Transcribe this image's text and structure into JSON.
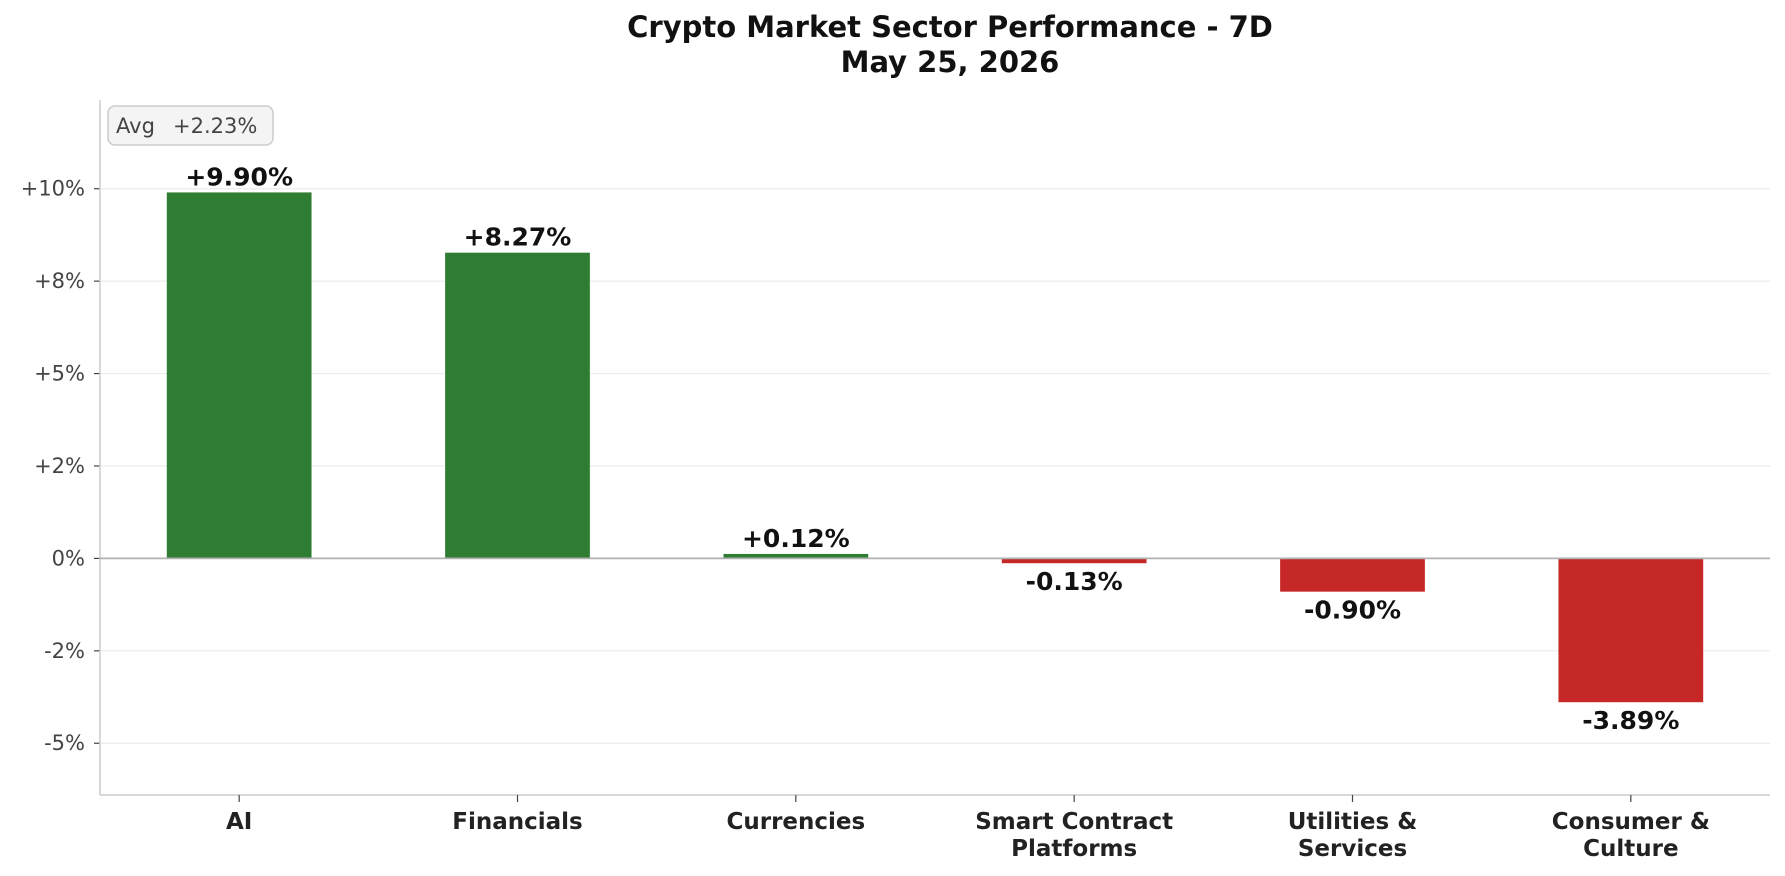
{
  "chart_data": {
    "type": "bar",
    "title": "Crypto Market Sector Performance - 7D",
    "subtitle": "May 25, 2026",
    "xlabel": "",
    "ylabel": "",
    "categories": [
      "AI",
      "Financials",
      "Currencies",
      "Smart Contract\nPlatforms",
      "Utilities &\nServices",
      "Consumer &\nCulture"
    ],
    "values": [
      9.9,
      8.27,
      0.12,
      -0.13,
      -0.9,
      -3.89
    ],
    "value_labels": [
      "+9.90%",
      "+8.27%",
      "+0.12%",
      "-0.13%",
      "-0.90%",
      "-3.89%"
    ],
    "ylim": [
      -6.4,
      12.4
    ],
    "yticks": [
      -5,
      -2.5,
      0,
      2.5,
      5,
      7.5,
      10
    ],
    "ytick_labels": [
      "-5%",
      "-2%",
      "0%",
      "+2%",
      "+5%",
      "+8%",
      "+10%"
    ],
    "grid": "horizontal",
    "annotation": {
      "label": "Avg",
      "value": "+2.23%"
    },
    "colors": {
      "positive": "#2e7d32",
      "negative": "#c62828",
      "grid": "#ececec",
      "zero_line": "#b0b0b0",
      "axis": "#cccccc"
    }
  }
}
